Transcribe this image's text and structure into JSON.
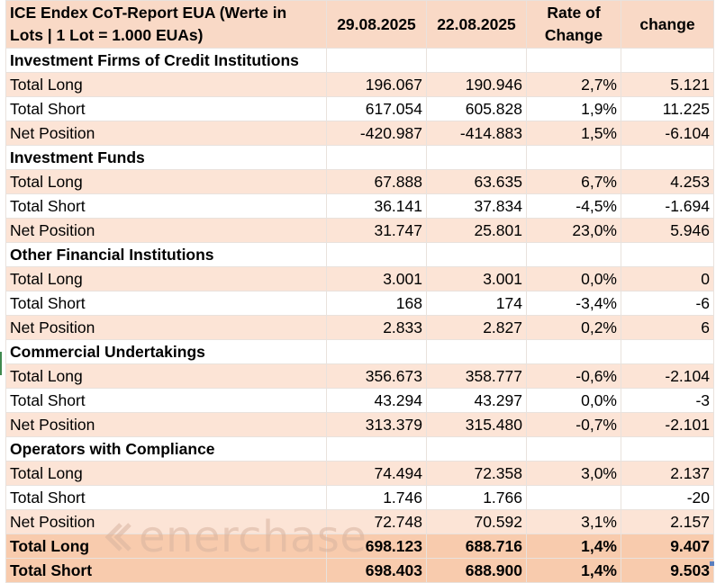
{
  "header": {
    "title": "ICE Endex CoT-Report EUA (Werte in Lots | 1 Lot = 1.000 EUAs)",
    "col1": "29.08.2025",
    "col2": "22.08.2025",
    "col3": "Rate of Change",
    "col4": "change"
  },
  "sections": [
    {
      "name": "Investment Firms of Credit Institutions",
      "rows": [
        {
          "label": "Total Long",
          "v1": "196.067",
          "v2": "190.946",
          "rate": "2,7%",
          "change": "5.121"
        },
        {
          "label": "Total Short",
          "v1": "617.054",
          "v2": "605.828",
          "rate": "1,9%",
          "change": "11.225"
        },
        {
          "label": "Net Position",
          "v1": "-420.987",
          "v2": "-414.883",
          "rate": "1,5%",
          "change": "-6.104"
        }
      ]
    },
    {
      "name": "Investment Funds",
      "rows": [
        {
          "label": "Total Long",
          "v1": "67.888",
          "v2": "63.635",
          "rate": "6,7%",
          "change": "4.253"
        },
        {
          "label": "Total Short",
          "v1": "36.141",
          "v2": "37.834",
          "rate": "-4,5%",
          "change": "-1.694"
        },
        {
          "label": "Net Position",
          "v1": "31.747",
          "v2": "25.801",
          "rate": "23,0%",
          "change": "5.946"
        }
      ]
    },
    {
      "name": "Other Financial Institutions",
      "rows": [
        {
          "label": "Total Long",
          "v1": "3.001",
          "v2": "3.001",
          "rate": "0,0%",
          "change": "0"
        },
        {
          "label": "Total Short",
          "v1": "168",
          "v2": "174",
          "rate": "-3,4%",
          "change": "-6"
        },
        {
          "label": "Net Position",
          "v1": "2.833",
          "v2": "2.827",
          "rate": "0,2%",
          "change": "6"
        }
      ]
    },
    {
      "name": "Commercial Undertakings",
      "rows": [
        {
          "label": "Total Long",
          "v1": "356.673",
          "v2": "358.777",
          "rate": "-0,6%",
          "change": "-2.104"
        },
        {
          "label": "Total Short",
          "v1": "43.294",
          "v2": "43.297",
          "rate": "0,0%",
          "change": "-3"
        },
        {
          "label": "Net Position",
          "v1": "313.379",
          "v2": "315.480",
          "rate": "-0,7%",
          "change": "-2.101"
        }
      ]
    },
    {
      "name": "Operators with Compliance",
      "rows": [
        {
          "label": "Total Long",
          "v1": "74.494",
          "v2": "72.358",
          "rate": "3,0%",
          "change": "2.137"
        },
        {
          "label": "Total Short",
          "v1": "1.746",
          "v2": "1.766",
          "rate": "",
          "change": "-20"
        },
        {
          "label": "Net Position",
          "v1": "72.748",
          "v2": "70.592",
          "rate": "3,1%",
          "change": "2.157"
        }
      ]
    }
  ],
  "totals": [
    {
      "label": "Total Long",
      "v1": "698.123",
      "v2": "688.716",
      "rate": "1,4%",
      "change": "9.407"
    },
    {
      "label": "Total Short",
      "v1": "698.403",
      "v2": "688.900",
      "rate": "1,4%",
      "change": "9.503"
    }
  ],
  "watermark": {
    "text": "enerchase",
    "icon": "enerchase-logo-icon"
  }
}
